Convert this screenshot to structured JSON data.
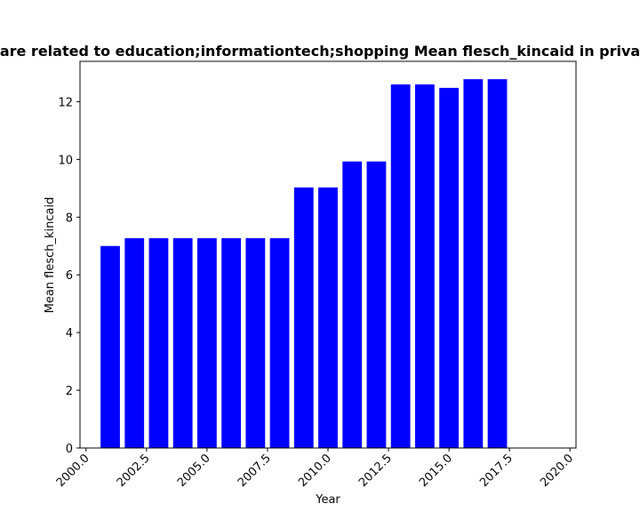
{
  "chart_data": {
    "type": "bar",
    "title": "are related to education;informationtech;shopping Mean flesch_kincaid in priva",
    "xlabel": "Year",
    "ylabel": "Mean flesch_kincaid",
    "x": [
      2001,
      2002,
      2003,
      2004,
      2005,
      2006,
      2007,
      2008,
      2009,
      2010,
      2011,
      2012,
      2013,
      2014,
      2015,
      2016,
      2017
    ],
    "values": [
      7.0,
      7.27,
      7.27,
      7.27,
      7.27,
      7.27,
      7.27,
      7.27,
      9.03,
      9.03,
      9.93,
      9.93,
      12.6,
      12.6,
      12.48,
      12.78,
      12.78
    ],
    "xlim": [
      1999.75,
      2020.25
    ],
    "ylim": [
      0,
      13.4
    ],
    "xticks": [
      "2000.0",
      "2002.5",
      "2005.0",
      "2007.5",
      "2010.0",
      "2012.5",
      "2015.0",
      "2017.5",
      "2020.0"
    ],
    "xtick_values": [
      2000,
      2002.5,
      2005,
      2007.5,
      2010,
      2012.5,
      2015,
      2017.5,
      2020
    ],
    "yticks": [
      "0",
      "2",
      "4",
      "6",
      "8",
      "10",
      "12"
    ],
    "ytick_values": [
      0,
      2,
      4,
      6,
      8,
      10,
      12
    ],
    "bar_color": "#0000ff",
    "grid": false,
    "legend": "none"
  }
}
